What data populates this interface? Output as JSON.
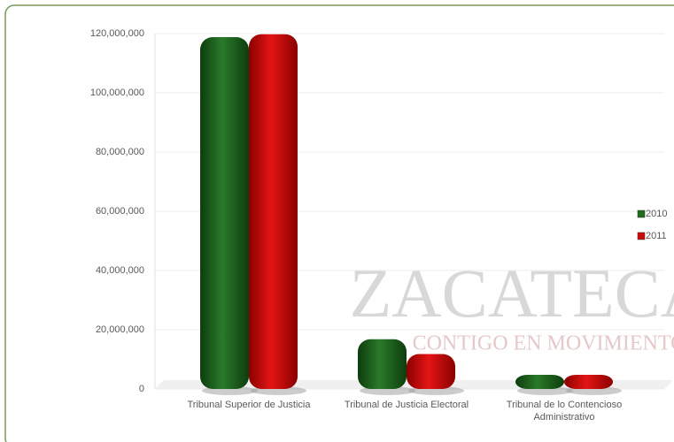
{
  "chart_data": {
    "type": "bar",
    "categories": [
      "Tribunal Superior de Justicia",
      "Tribunal de Justicia Electoral",
      "Tribunal de lo Contencioso Administrativo"
    ],
    "series": [
      {
        "name": "2010",
        "color": "#1f6b1f",
        "values": [
          117000000,
          15000000,
          3000000
        ]
      },
      {
        "name": "2011",
        "color": "#cc0a0a",
        "values": [
          118000000,
          10000000,
          3000000
        ]
      }
    ],
    "ylim": [
      0,
      120000000
    ],
    "yticks": [
      0,
      {
        "value": 20000000,
        "label": "20,000,000"
      },
      {
        "value": 40000000,
        "label": "40,000,000"
      },
      {
        "value": 60000000,
        "label": "60,000,000"
      },
      {
        "value": 80000000,
        "label": "80,000,000"
      },
      {
        "value": 100000000,
        "label": "100,000,000"
      },
      {
        "value": 120000000,
        "label": "120,000,000"
      }
    ],
    "grid": true,
    "legend": "right",
    "annotations": [
      "ZACATECAS",
      "CONTIGO EN MOVIMIENTO"
    ]
  }
}
